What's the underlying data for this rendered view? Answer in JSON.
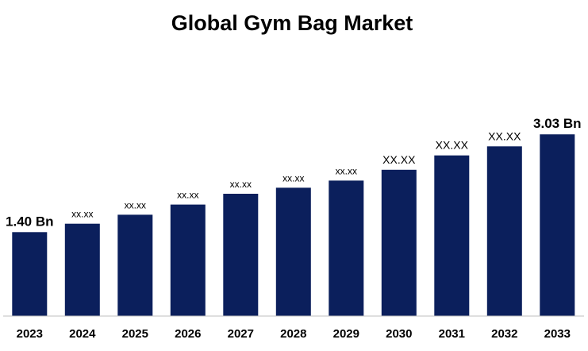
{
  "chart_data": {
    "type": "bar",
    "title": "Global Gym Bag Market",
    "xlabel": "",
    "ylabel": "",
    "categories": [
      "2023",
      "2024",
      "2025",
      "2026",
      "2027",
      "2028",
      "2029",
      "2030",
      "2031",
      "2032",
      "2033"
    ],
    "values": [
      1.4,
      1.54,
      1.69,
      1.86,
      2.04,
      2.14,
      2.26,
      2.44,
      2.68,
      2.83,
      3.03
    ],
    "data_labels": [
      "1.40 Bn",
      "xx.xx",
      "xx.xx",
      "xx.xx",
      "xx.xx",
      "xx.xx",
      "xx.xx",
      "XX.XX",
      "XX.XX",
      "XX.XX",
      "3.03 Bn"
    ],
    "ylim": [
      0,
      3.5
    ],
    "grid": false,
    "legend": "none",
    "bar_color": "#0b1f5c",
    "axis_color": "#bfbfbf"
  }
}
